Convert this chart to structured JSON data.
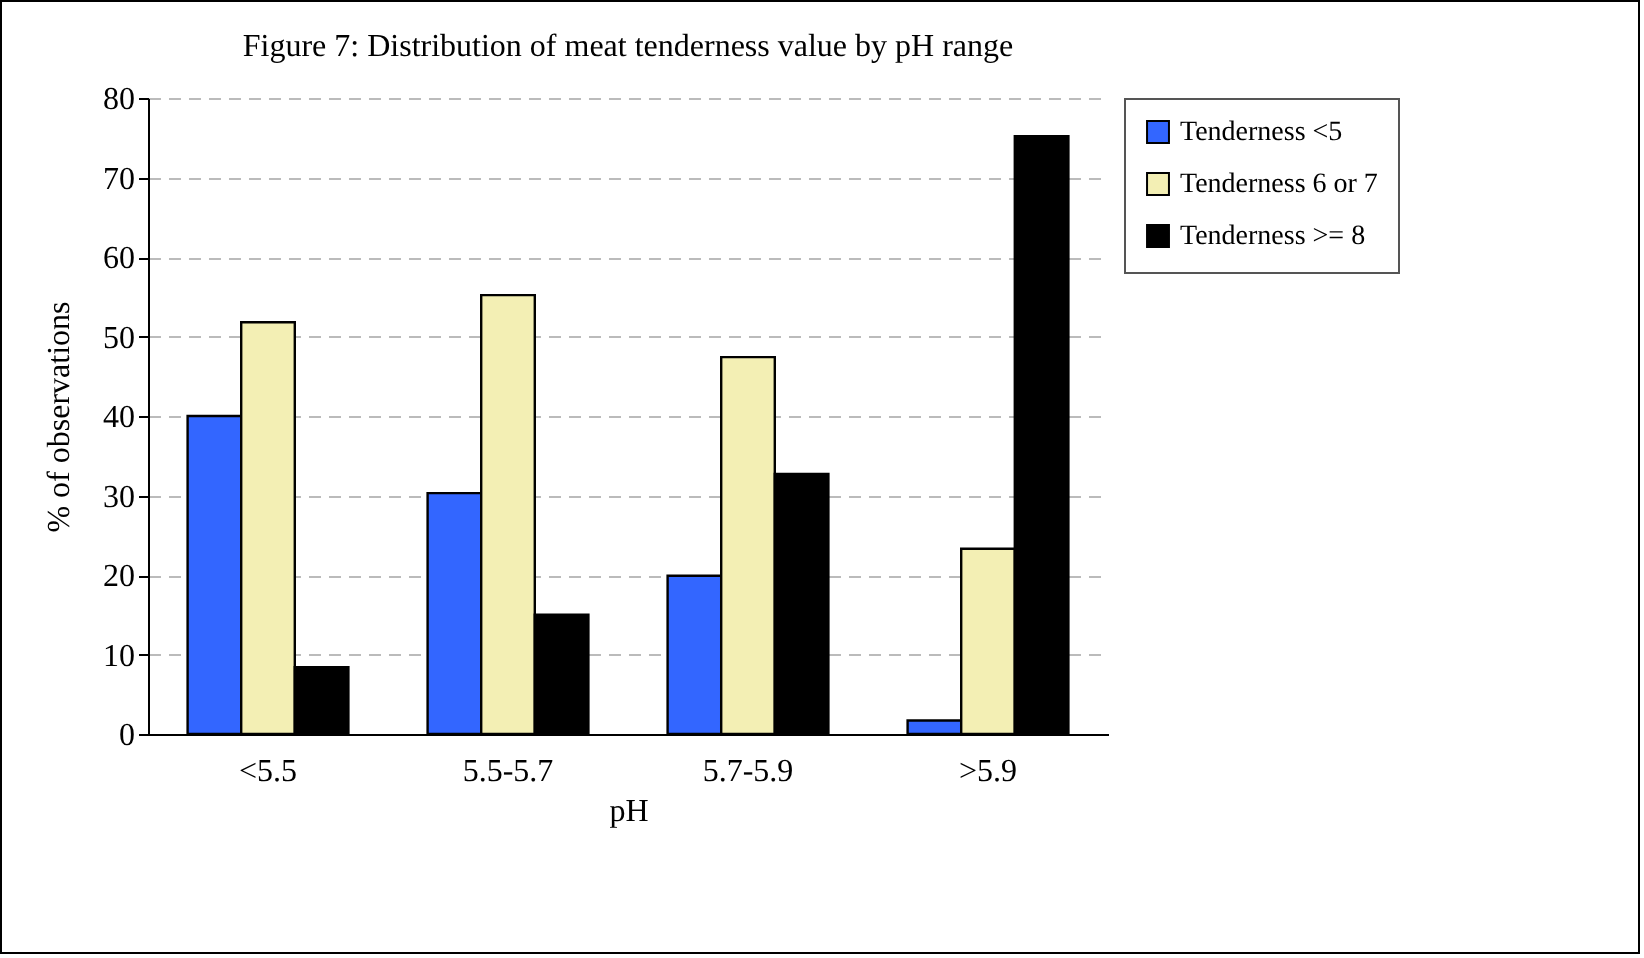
{
  "chart_data": {
    "type": "bar",
    "title": "Figure 7: Distribution of meat tenderness value by pH range",
    "xlabel": "pH",
    "ylabel": "% of observations",
    "categories": [
      "<5.5",
      "5.5-5.7",
      "5.7-5.9",
      ">5.9"
    ],
    "series": [
      {
        "name": "Tenderness <5",
        "color": "#3366ff",
        "values": [
          40,
          30.3,
          19.9,
          1.7
        ]
      },
      {
        "name": "Tenderness 6 or 7",
        "color": "#f3efb4",
        "values": [
          51.8,
          55.2,
          47.4,
          23.3
        ]
      },
      {
        "name": "Tenderness >= 8",
        "color": "#000000",
        "values": [
          8.4,
          15,
          32.7,
          75.2
        ]
      }
    ],
    "ylim": [
      0,
      80
    ],
    "yticks": [
      0,
      10,
      20,
      30,
      40,
      50,
      60,
      70,
      80
    ],
    "grid": "y",
    "legend": "right"
  }
}
